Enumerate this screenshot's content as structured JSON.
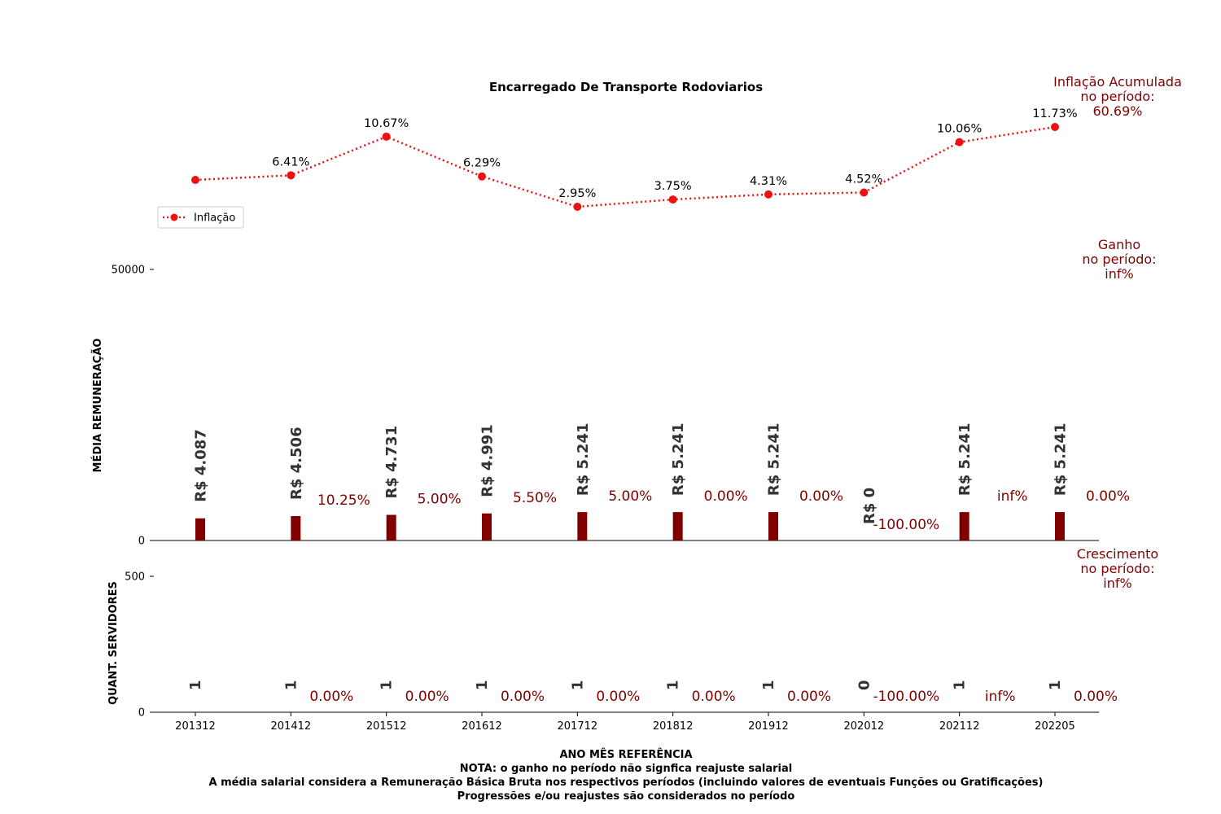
{
  "chart_data": {
    "type": "bar",
    "title": "Encarregado De Transporte Rodoviarios",
    "categories": [
      "201312",
      "201412",
      "201512",
      "201612",
      "201712",
      "201812",
      "201912",
      "202012",
      "202112",
      "202205"
    ],
    "inflation": {
      "legend": "Inflação",
      "values": [
        null,
        6.41,
        10.67,
        6.29,
        2.95,
        3.75,
        4.31,
        4.52,
        10.06,
        11.73
      ],
      "labels": [
        "",
        "6.41%",
        "10.67%",
        "6.29%",
        "2.95%",
        "3.75%",
        "4.31%",
        "4.52%",
        "10.06%",
        "11.73%"
      ],
      "color": "#ee1111"
    },
    "salary": {
      "ylabel": "MÉDIA REMUNERAÇÃO",
      "yticks": [
        0,
        50000
      ],
      "ylim": [
        0,
        50000
      ],
      "values": [
        4087,
        4506,
        4731,
        4991,
        5241,
        5241,
        5241,
        0,
        5241,
        5241
      ],
      "labels": [
        "R$ 4.087",
        "R$ 4.506",
        "R$ 4.731",
        "R$ 4.991",
        "R$ 5.241",
        "R$ 5.241",
        "R$ 5.241",
        "R$ 0",
        "R$ 5.241",
        "R$ 5.241"
      ],
      "growth": [
        "",
        "10.25%",
        "5.00%",
        "5.50%",
        "5.00%",
        "0.00%",
        "0.00%",
        "-100.00%",
        "inf%",
        "0.00%"
      ],
      "bar_color": "#800000"
    },
    "servers": {
      "ylabel": "QUANT. SERVIDORES",
      "yticks": [
        0,
        500
      ],
      "ylim": [
        0,
        500
      ],
      "values": [
        1,
        1,
        1,
        1,
        1,
        1,
        1,
        0,
        1,
        1
      ],
      "labels": [
        "1",
        "1",
        "1",
        "1",
        "1",
        "1",
        "1",
        "0",
        "1",
        "1"
      ],
      "growth": [
        "",
        "0.00%",
        "0.00%",
        "0.00%",
        "0.00%",
        "0.00%",
        "0.00%",
        "-100.00%",
        "inf%",
        "0.00%"
      ]
    },
    "side_notes": {
      "inflation": [
        "Inflação Acumulada",
        "no período:",
        "60.69%"
      ],
      "gain": [
        "Ganho",
        "no período:",
        "inf%"
      ],
      "growth": [
        "Crescimento",
        "no período:",
        "inf%"
      ]
    },
    "xlabel": "ANO MÊS REFERÊNCIA",
    "footnotes": [
      "NOTA: o ganho no período não signfica reajuste salarial",
      "A média salarial considera a Remuneração Básica Bruta nos respectivos períodos (incluindo valores de eventuais Funções ou Gratificações)",
      "Progressões e/ou reajustes são considerados no período"
    ],
    "colors": {
      "accent": "#800000",
      "label_text": "#333333"
    }
  }
}
